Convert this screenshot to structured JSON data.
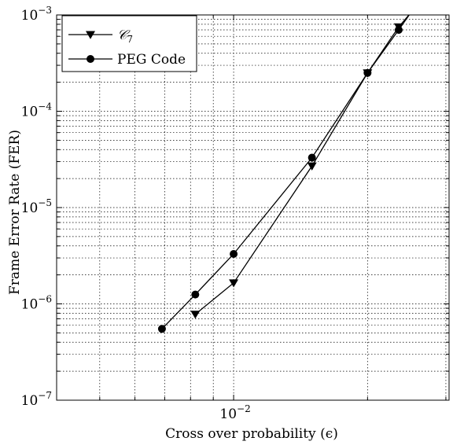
{
  "chart_data": {
    "type": "line",
    "title": "",
    "xlabel": "Cross over probability (ϵ)",
    "ylabel": "Frame Error Rate (FER)",
    "x_scale": "log",
    "y_scale": "log",
    "xlim": [
      0.004,
      0.0305
    ],
    "ylim": [
      1e-07,
      0.001
    ],
    "grid": true,
    "legend_position": "top-left",
    "x_major_ticks": [
      {
        "value": 0.01,
        "base": "10",
        "exp": "−2"
      }
    ],
    "y_major_ticks": [
      {
        "value": 1e-07,
        "base": "10",
        "exp": "−7"
      },
      {
        "value": 1e-06,
        "base": "10",
        "exp": "−6"
      },
      {
        "value": 1e-05,
        "base": "10",
        "exp": "−5"
      },
      {
        "value": 0.0001,
        "base": "10",
        "exp": "−4"
      },
      {
        "value": 0.001,
        "base": "10",
        "exp": "−3"
      }
    ],
    "series": [
      {
        "name": "𝒞₇",
        "name_main": "𝒞",
        "name_sub": "7",
        "marker": "triangle-down",
        "color": "#000000",
        "x": [
          0.0082,
          0.01,
          0.015,
          0.02,
          0.0235,
          0.025
        ],
        "y": [
          7.8e-07,
          1.65e-06,
          2.7e-05,
          0.00025,
          0.00075,
          0.00105
        ]
      },
      {
        "name": "PEG Code",
        "marker": "circle",
        "color": "#000000",
        "x": [
          0.0069,
          0.0082,
          0.01,
          0.015,
          0.02,
          0.0235,
          0.025
        ],
        "y": [
          5.5e-07,
          1.25e-06,
          3.3e-06,
          3.3e-05,
          0.00025,
          0.0007,
          0.00105
        ]
      }
    ]
  }
}
